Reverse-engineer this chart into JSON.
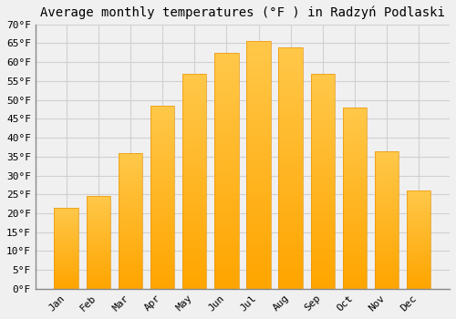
{
  "title": "Average monthly temperatures (°F ) in Radzyń Podlaski",
  "months": [
    "Jan",
    "Feb",
    "Mar",
    "Apr",
    "May",
    "Jun",
    "Jul",
    "Aug",
    "Sep",
    "Oct",
    "Nov",
    "Dec"
  ],
  "values": [
    21.5,
    24.5,
    36.0,
    48.5,
    57.0,
    62.5,
    65.5,
    64.0,
    57.0,
    48.0,
    36.5,
    26.0
  ],
  "bar_color_top": "#FFC84A",
  "bar_color_bottom": "#FFA500",
  "background_color": "#f0f0f0",
  "grid_color": "#d0d0d0",
  "ylim": [
    0,
    70
  ],
  "yticks": [
    0,
    5,
    10,
    15,
    20,
    25,
    30,
    35,
    40,
    45,
    50,
    55,
    60,
    65,
    70
  ],
  "title_fontsize": 10,
  "tick_fontsize": 8,
  "font_family": "monospace"
}
